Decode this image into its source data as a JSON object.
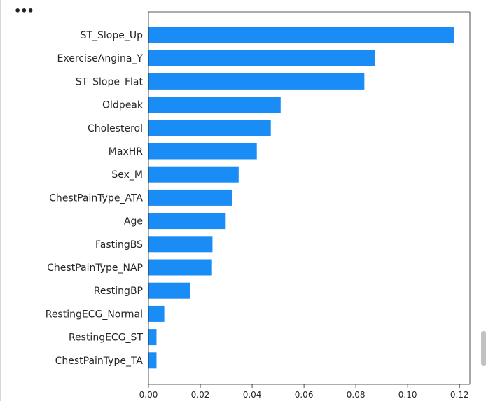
{
  "toolbar": {
    "more_icon": "more-horizontal-icon",
    "more_glyph": "•••"
  },
  "chart_data": {
    "type": "bar",
    "orientation": "horizontal",
    "categories": [
      "ST_Slope_Up",
      "ExerciseAngina_Y",
      "ST_Slope_Flat",
      "Oldpeak",
      "Cholesterol",
      "MaxHR",
      "Sex_M",
      "ChestPainType_ATA",
      "Age",
      "FastingBS",
      "ChestPainType_NAP",
      "RestingBP",
      "RestingECG_Normal",
      "RestingECG_ST",
      "ChestPainType_TA"
    ],
    "values": [
      0.118,
      0.0875,
      0.0833,
      0.051,
      0.0472,
      0.0418,
      0.0348,
      0.0324,
      0.0298,
      0.0247,
      0.0245,
      0.0161,
      0.0061,
      0.0031,
      0.0031
    ],
    "xticks": [
      "0.00",
      "0.02",
      "0.04",
      "0.06",
      "0.08",
      "0.10",
      "0.12"
    ],
    "xlim": [
      0,
      0.124
    ],
    "bar_color": "#1a8cf5",
    "title": "",
    "xlabel": "",
    "ylabel": "",
    "grid": false,
    "legend": false
  }
}
